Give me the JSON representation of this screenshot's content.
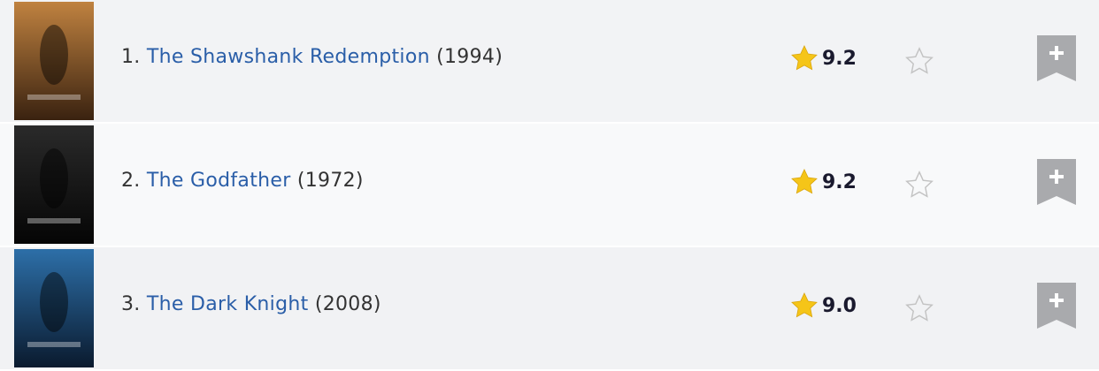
{
  "colors": {
    "link": "#2a5ea8",
    "star": "#f5c518",
    "watchlist": "#a9aaad"
  },
  "movies": [
    {
      "rank": "1.",
      "title": "The Shawshank Redemption",
      "year": "(1994)",
      "rating": "9.2",
      "poster_colors": [
        "#c08240",
        "#3a2210"
      ]
    },
    {
      "rank": "2.",
      "title": "The Godfather",
      "year": "(1972)",
      "rating": "9.2",
      "poster_colors": [
        "#2a2a2a",
        "#050505"
      ]
    },
    {
      "rank": "3.",
      "title": "The Dark Knight",
      "year": "(2008)",
      "rating": "9.0",
      "poster_colors": [
        "#2d6fa8",
        "#0a1a2e"
      ]
    }
  ],
  "icons": {
    "rating": "star-filled-icon",
    "rate": "star-outline-icon",
    "watchlist": "bookmark-plus-icon"
  }
}
